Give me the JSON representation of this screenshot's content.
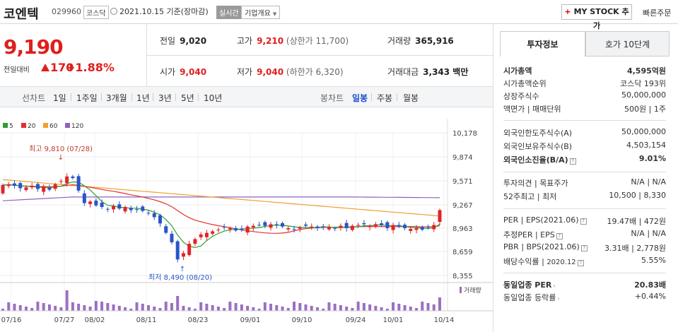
{
  "header": {
    "name": "코엔텍",
    "code": "029960",
    "market": "코스닥",
    "date": "2021.10.15 기준(장마감)",
    "realtime": "실시간",
    "company_info": "기업개요",
    "mystock": "MY STOCK 추가",
    "quick_order": "빠른주문"
  },
  "price": {
    "current": "9,190",
    "change_label": "전일대비",
    "change": "170",
    "change_pct": "+1.88%"
  },
  "quote": {
    "prev_label": "전일",
    "prev": "9,020",
    "high_label": "고가",
    "high": "9,210",
    "upper": "(상한가 11,700)",
    "volume_label": "거래량",
    "volume": "365,916",
    "open_label": "시가",
    "open": "9,040",
    "low_label": "저가",
    "low": "9,040",
    "lower": "(하한가 6,320)",
    "amount_label": "거래대금",
    "amount": "3,343 백만"
  },
  "period_tabs": {
    "line_label": "선차트",
    "line": [
      "1일",
      "1주일",
      "3개월",
      "1년",
      "3년",
      "5년",
      "10년"
    ],
    "candle_label": "봉차트",
    "candle": [
      "일봉",
      "주봉",
      "월봉"
    ],
    "active": "일봉"
  },
  "chart_data": {
    "type": "candlestick",
    "legend": [
      "5",
      "20",
      "60",
      "120"
    ],
    "colors": {
      "ma5": "#2ca02c",
      "ma20": "#e03030",
      "ma60": "#f0a030",
      "ma120": "#9060c0"
    },
    "y_ticks": [
      "10,178",
      "9,874",
      "9,571",
      "9,267",
      "8,963",
      "8,659",
      "8,355"
    ],
    "x_ticks": [
      "07/16",
      "07/27",
      "08/02",
      "08/11",
      "08/23",
      "09/01",
      "09/10",
      "09/24",
      "10/01",
      "10/14"
    ],
    "high_annotation": "최고 9,810 (07/28)",
    "low_annotation": "최저 8,490 (08/20)",
    "volume_label": "거래량",
    "ylim": [
      8355,
      10178
    ]
  },
  "right_panel": {
    "tabs": [
      "투자정보",
      "호가 10단계"
    ],
    "market_cap": {
      "label": "시가총액",
      "value": "4,595억원"
    },
    "market_cap_rank": {
      "label": "시가총액순위",
      "value": "코스닥 193위"
    },
    "shares": {
      "label": "상장주식수",
      "value": "50,000,000"
    },
    "par": {
      "label1": "액면가",
      "label2": "매매단위",
      "value1": "500원",
      "value2": "1주"
    },
    "foreign_limit": {
      "label": "외국인한도주식수(A)",
      "value": "50,000,000"
    },
    "foreign_hold": {
      "label": "외국인보유주식수(B)",
      "value": "4,503,154"
    },
    "foreign_ratio": {
      "label": "외국인소진율(B/A)",
      "value": "9.01%"
    },
    "opinion": {
      "label1": "투자의견",
      "label2": "목표주가",
      "value1": "N/A",
      "value2": "N/A"
    },
    "week52": {
      "label1": "52주최고",
      "label2": "최저",
      "value1": "10,500",
      "value2": "8,330"
    },
    "per": {
      "label1": "PER",
      "label2": "EPS(2021.06)",
      "value1": "19.47배",
      "value2": "472원"
    },
    "est_per": {
      "label1": "추정PER",
      "label2": "EPS",
      "value1": "N/A",
      "value2": "N/A"
    },
    "pbr": {
      "label1": "PBR",
      "label2": "BPS(2021.06)",
      "value1": "3.31배",
      "value2": "2,778원"
    },
    "dividend": {
      "label": "배당수익률",
      "sub": "2020.12",
      "value": "5.55%"
    },
    "industry_per": {
      "label": "동일업종 PER",
      "value": "20.83배"
    },
    "industry_rate": {
      "label": "동일업종 등락률",
      "value": "+0.44%"
    }
  }
}
